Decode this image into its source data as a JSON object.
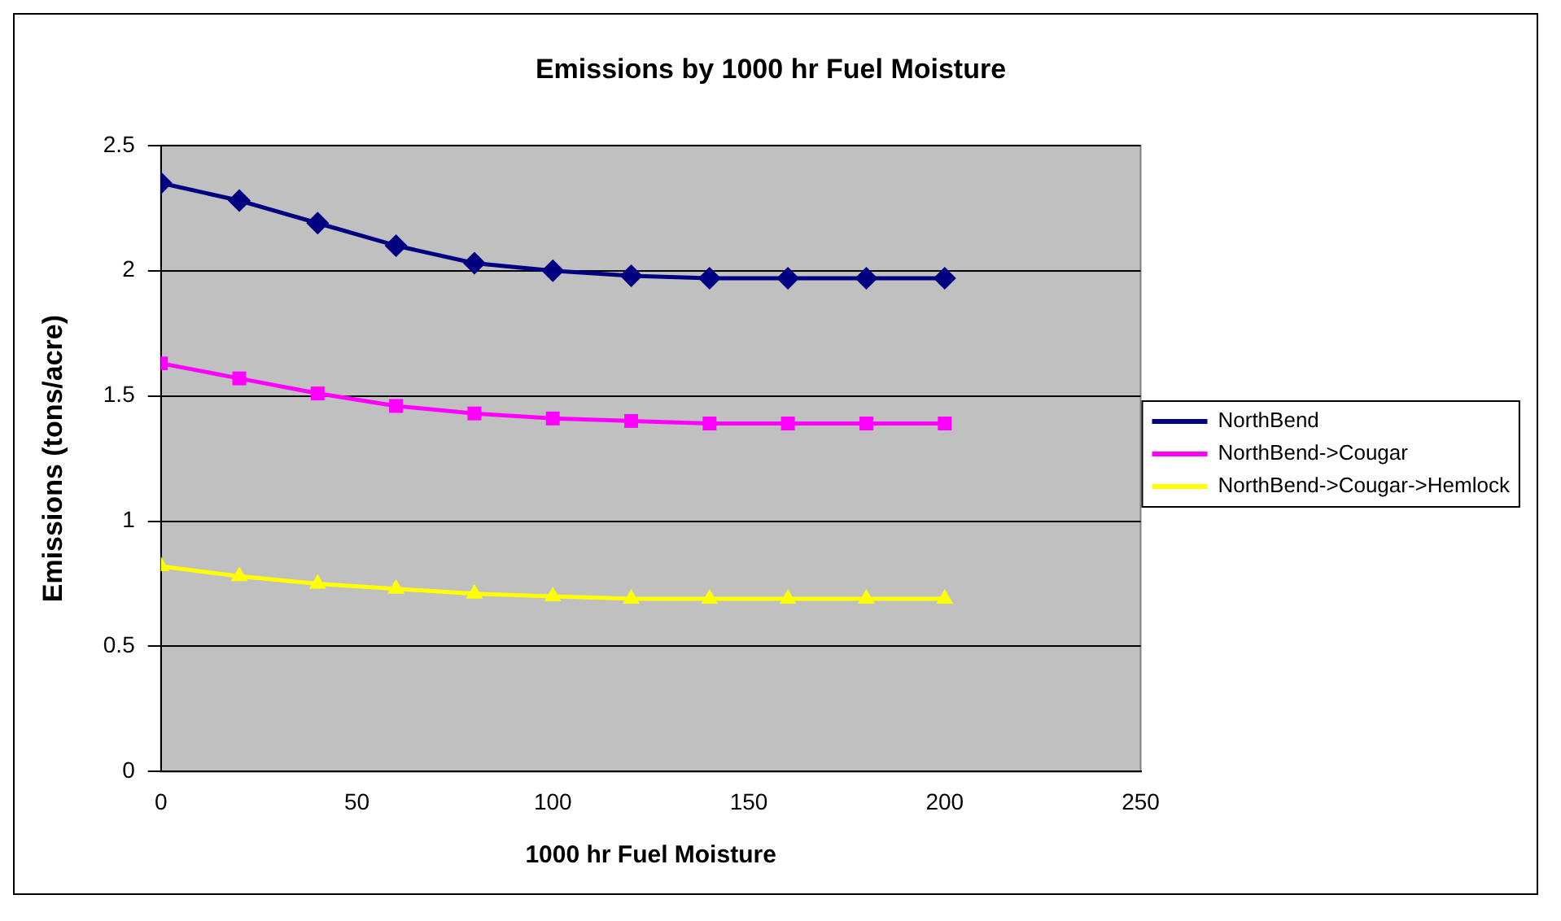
{
  "chart_data": {
    "type": "line",
    "title": "Emissions by 1000 hr Fuel Moisture",
    "xlabel": "1000 hr Fuel Moisture",
    "ylabel": "Emissions (tons/acre)",
    "x": [
      0,
      20,
      40,
      60,
      80,
      100,
      120,
      140,
      160,
      180,
      200
    ],
    "series": [
      {
        "name": "NorthBend",
        "color": "#000080",
        "marker": "diamond",
        "values": [
          2.35,
          2.28,
          2.19,
          2.1,
          2.03,
          2.0,
          1.98,
          1.97,
          1.97,
          1.97,
          1.97
        ]
      },
      {
        "name": "NorthBend->Cougar",
        "color": "#ff00ff",
        "marker": "square",
        "values": [
          1.63,
          1.57,
          1.51,
          1.46,
          1.43,
          1.41,
          1.4,
          1.39,
          1.39,
          1.39,
          1.39
        ]
      },
      {
        "name": "NorthBend->Cougar->Hemlock",
        "color": "#ffff00",
        "marker": "triangle",
        "values": [
          0.82,
          0.78,
          0.75,
          0.73,
          0.71,
          0.7,
          0.69,
          0.69,
          0.69,
          0.69,
          0.69
        ]
      }
    ],
    "xlim": [
      0,
      250
    ],
    "xticks": [
      0,
      50,
      100,
      150,
      200,
      250
    ],
    "ylim": [
      0,
      2.5
    ],
    "yticks": [
      0,
      0.5,
      1,
      1.5,
      2,
      2.5
    ],
    "grid": "y",
    "legend": "right"
  }
}
